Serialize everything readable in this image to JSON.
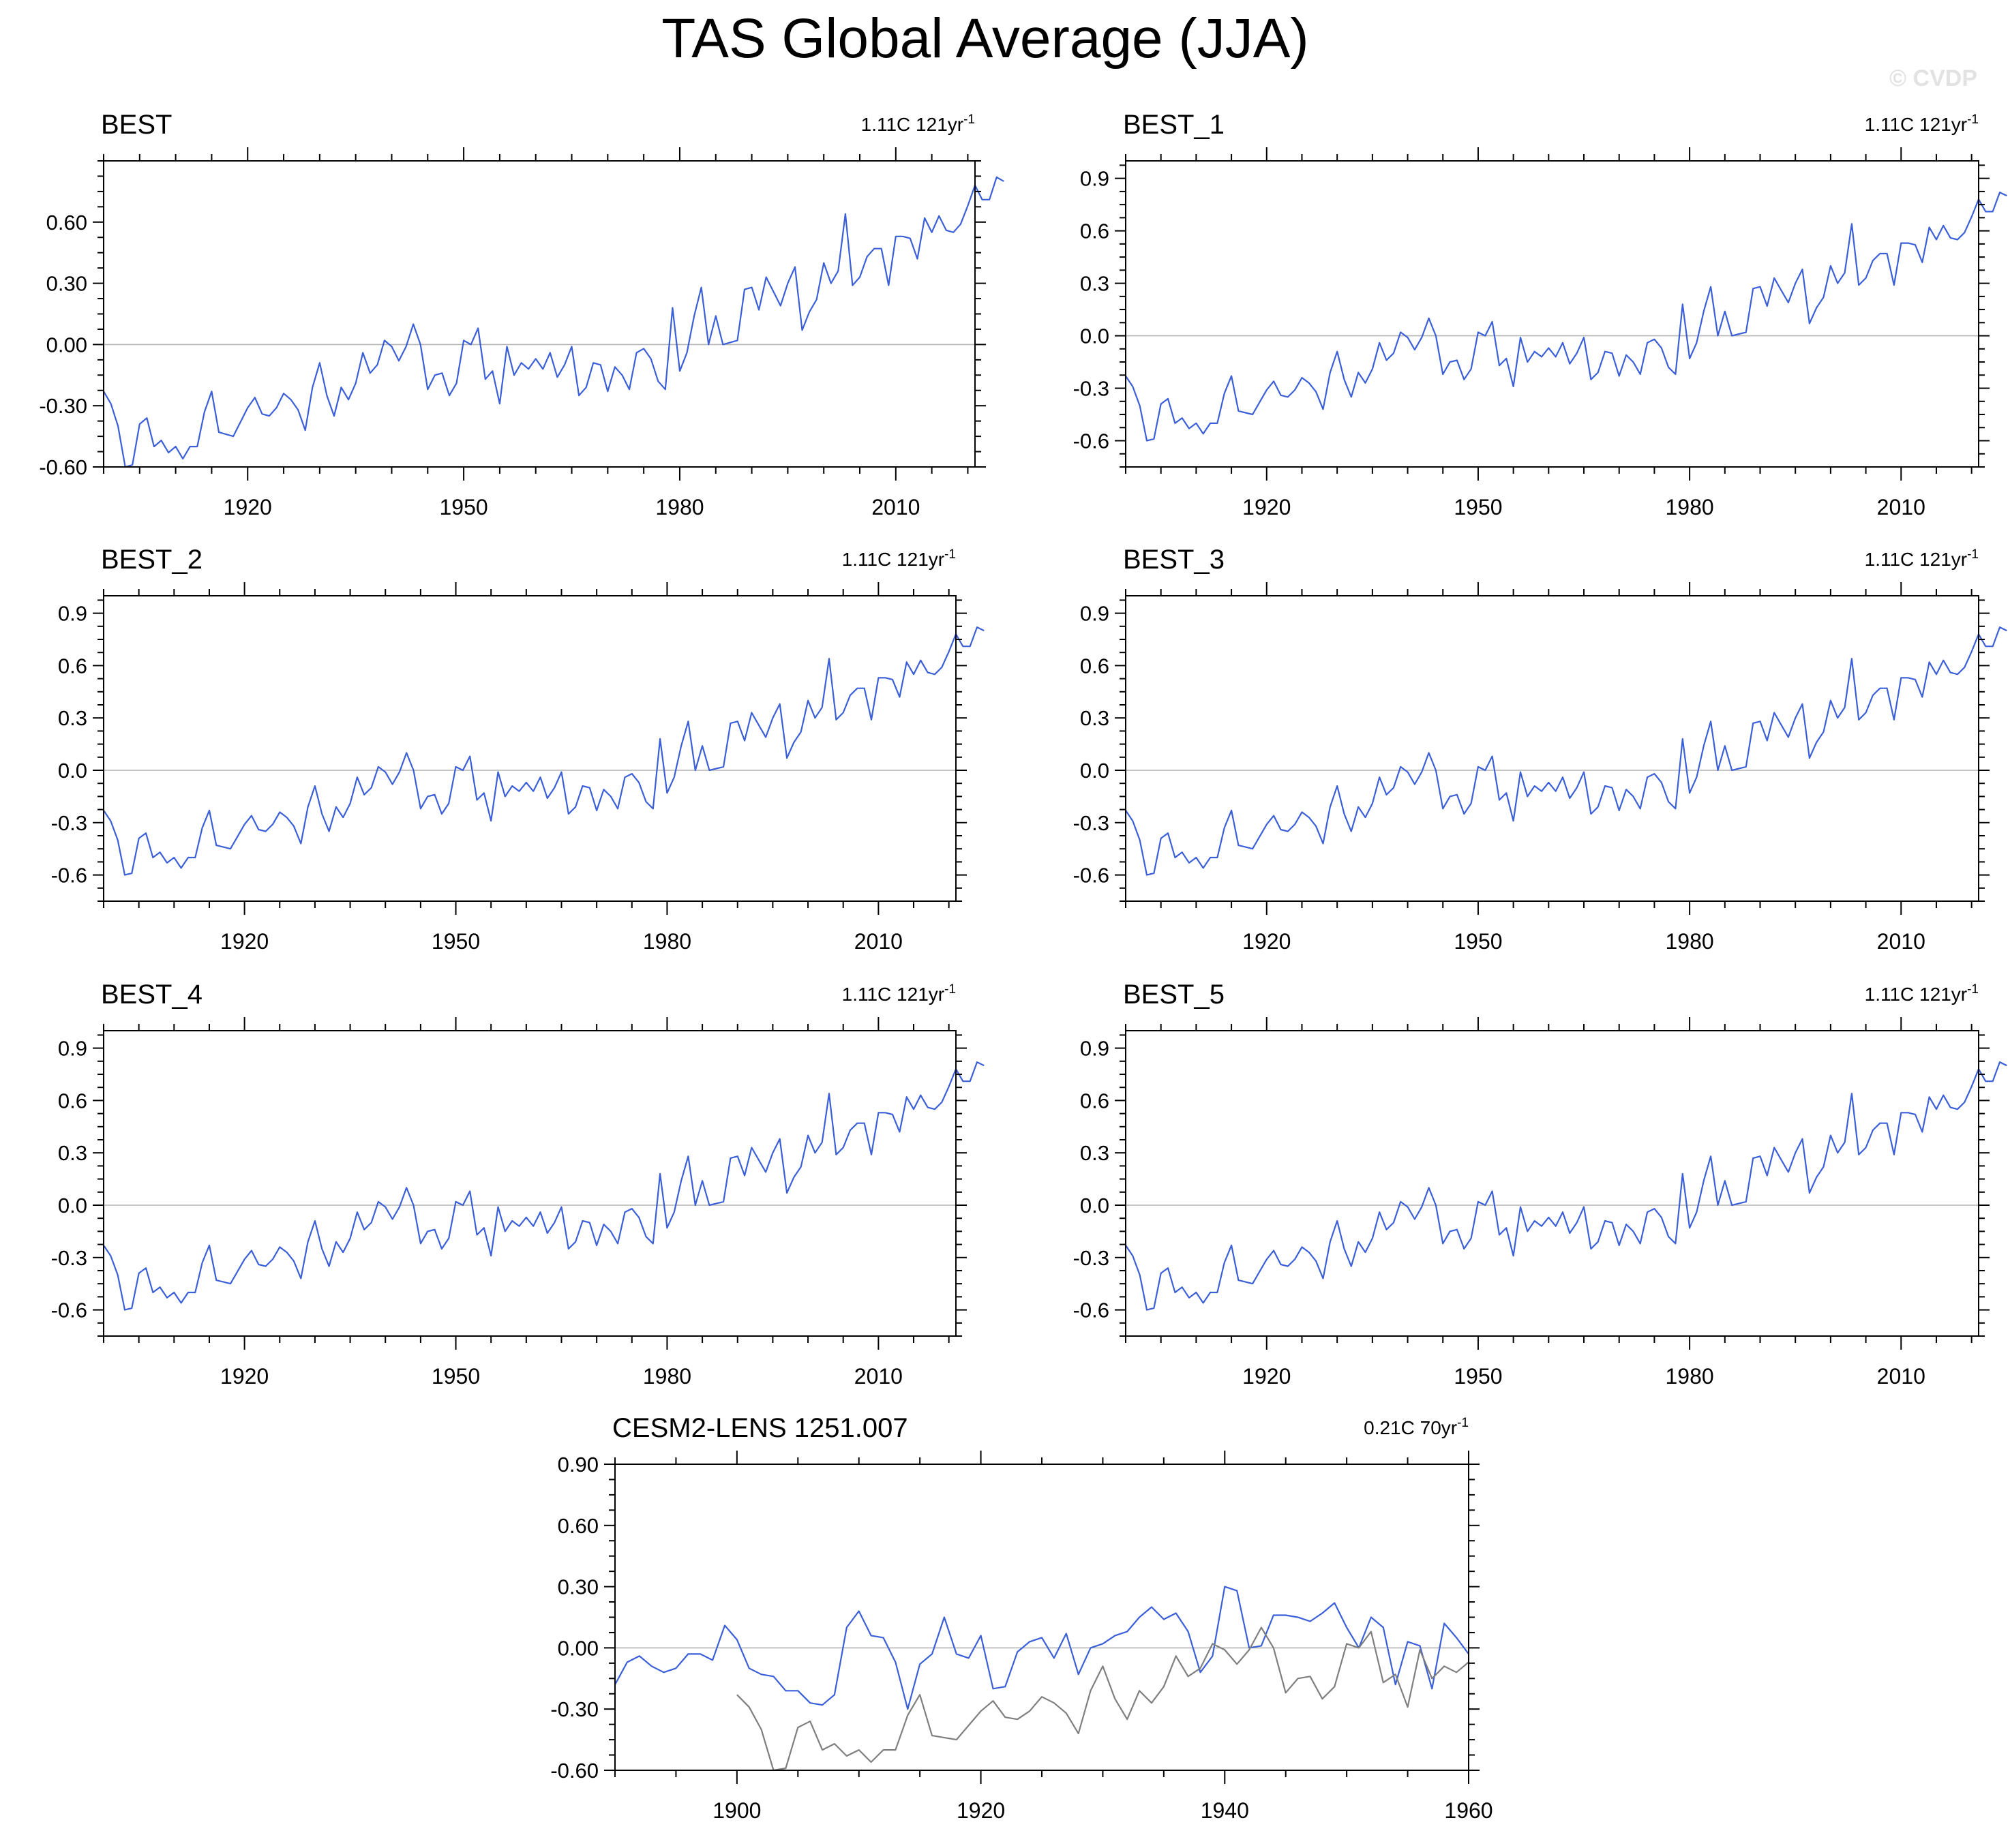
{
  "title": "TAS Global Average (JJA)",
  "watermark": "© CVDP",
  "colors": {
    "primary": "#3a5fd8",
    "reference": "#7f7f7f",
    "zero": "#b4b4b4",
    "axis": "#000000"
  },
  "chart_data": [
    {
      "type": "line",
      "title": "BEST",
      "trend": {
        "value": "1.11C",
        "period": "121yr",
        "exp": "-1"
      },
      "xlim": [
        1900,
        2021
      ],
      "ylim": [
        -0.6,
        0.9
      ],
      "xticks": [
        1920,
        1950,
        1980,
        2010
      ],
      "yticks": [
        -0.6,
        -0.3,
        0.0,
        0.3,
        0.6
      ],
      "ytick_labels": [
        "-0.60",
        "-0.30",
        "0.00",
        "0.30",
        "0.60"
      ],
      "series": [
        {
          "name": "BEST",
          "ref": "best"
        }
      ]
    },
    {
      "type": "line",
      "title": "BEST_1",
      "trend": {
        "value": "1.11C",
        "period": "121yr",
        "exp": "-1"
      },
      "xlim": [
        1900,
        2021
      ],
      "ylim": [
        -0.75,
        1.0
      ],
      "xticks": [
        1920,
        1950,
        1980,
        2010
      ],
      "yticks": [
        -0.6,
        -0.3,
        0.0,
        0.3,
        0.6,
        0.9
      ],
      "ytick_labels": [
        "-0.6",
        "-0.3",
        "0.0",
        "0.3",
        "0.6",
        "0.9"
      ],
      "series": [
        {
          "name": "BEST_1",
          "ref": "best"
        }
      ]
    },
    {
      "type": "line",
      "title": "BEST_2",
      "trend": {
        "value": "1.11C",
        "period": "121yr",
        "exp": "-1"
      },
      "xlim": [
        1900,
        2021
      ],
      "ylim": [
        -0.75,
        1.0
      ],
      "xticks": [
        1920,
        1950,
        1980,
        2010
      ],
      "yticks": [
        -0.6,
        -0.3,
        0.0,
        0.3,
        0.6,
        0.9
      ],
      "ytick_labels": [
        "-0.6",
        "-0.3",
        "0.0",
        "0.3",
        "0.6",
        "0.9"
      ],
      "series": [
        {
          "name": "BEST_2",
          "ref": "best"
        }
      ]
    },
    {
      "type": "line",
      "title": "BEST_3",
      "trend": {
        "value": "1.11C",
        "period": "121yr",
        "exp": "-1"
      },
      "xlim": [
        1900,
        2021
      ],
      "ylim": [
        -0.75,
        1.0
      ],
      "xticks": [
        1920,
        1950,
        1980,
        2010
      ],
      "yticks": [
        -0.6,
        -0.3,
        0.0,
        0.3,
        0.6,
        0.9
      ],
      "ytick_labels": [
        "-0.6",
        "-0.3",
        "0.0",
        "0.3",
        "0.6",
        "0.9"
      ],
      "series": [
        {
          "name": "BEST_3",
          "ref": "best"
        }
      ]
    },
    {
      "type": "line",
      "title": "BEST_4",
      "trend": {
        "value": "1.11C",
        "period": "121yr",
        "exp": "-1"
      },
      "xlim": [
        1900,
        2021
      ],
      "ylim": [
        -0.75,
        1.0
      ],
      "xticks": [
        1920,
        1950,
        1980,
        2010
      ],
      "yticks": [
        -0.6,
        -0.3,
        0.0,
        0.3,
        0.6,
        0.9
      ],
      "ytick_labels": [
        "-0.6",
        "-0.3",
        "0.0",
        "0.3",
        "0.6",
        "0.9"
      ],
      "series": [
        {
          "name": "BEST_4",
          "ref": "best"
        }
      ]
    },
    {
      "type": "line",
      "title": "BEST_5",
      "trend": {
        "value": "1.11C",
        "period": "121yr",
        "exp": "-1"
      },
      "xlim": [
        1900,
        2021
      ],
      "ylim": [
        -0.75,
        1.0
      ],
      "xticks": [
        1920,
        1950,
        1980,
        2010
      ],
      "yticks": [
        -0.6,
        -0.3,
        0.0,
        0.3,
        0.6,
        0.9
      ],
      "ytick_labels": [
        "-0.6",
        "-0.3",
        "0.0",
        "0.3",
        "0.6",
        "0.9"
      ],
      "series": [
        {
          "name": "BEST_5",
          "ref": "best"
        }
      ]
    },
    {
      "type": "line",
      "title": "CESM2-LENS 1251.007",
      "trend": {
        "value": "0.21C",
        "period": "70yr",
        "exp": "-1"
      },
      "xlim": [
        1890,
        1960
      ],
      "ylim": [
        -0.6,
        0.9
      ],
      "xticks": [
        1900,
        1920,
        1940,
        1960
      ],
      "yticks": [
        -0.6,
        -0.3,
        0.0,
        0.3,
        0.6,
        0.9
      ],
      "ytick_labels": [
        "-0.60",
        "-0.30",
        "0.00",
        "0.30",
        "0.60",
        "0.90"
      ],
      "series": [
        {
          "name": "CESM2-LENS 1251.007",
          "ref": "cesm",
          "x0": 1890
        },
        {
          "name": "BEST",
          "ref": "best",
          "range": [
            1900,
            1960
          ],
          "color": "reference"
        }
      ]
    }
  ],
  "series_data": {
    "best": {
      "x0": 1900,
      "values": [
        -0.23,
        -0.29,
        -0.4,
        -0.6,
        -0.59,
        -0.39,
        -0.36,
        -0.5,
        -0.47,
        -0.53,
        -0.5,
        -0.56,
        -0.5,
        -0.5,
        -0.33,
        -0.23,
        -0.43,
        -0.44,
        -0.45,
        -0.38,
        -0.31,
        -0.26,
        -0.34,
        -0.35,
        -0.31,
        -0.24,
        -0.27,
        -0.32,
        -0.42,
        -0.21,
        -0.09,
        -0.25,
        -0.35,
        -0.21,
        -0.27,
        -0.19,
        -0.04,
        -0.14,
        -0.1,
        0.02,
        -0.01,
        -0.08,
        -0.01,
        0.1,
        0.0,
        -0.22,
        -0.15,
        -0.14,
        -0.25,
        -0.19,
        0.02,
        0.0,
        0.08,
        -0.17,
        -0.13,
        -0.29,
        -0.01,
        -0.15,
        -0.09,
        -0.12,
        -0.07,
        -0.12,
        -0.04,
        -0.16,
        -0.1,
        -0.01,
        -0.25,
        -0.21,
        -0.09,
        -0.1,
        -0.23,
        -0.11,
        -0.15,
        -0.22,
        -0.04,
        -0.02,
        -0.07,
        -0.18,
        -0.22,
        0.18,
        -0.13,
        -0.04,
        0.14,
        0.28,
        0.0,
        0.14,
        0.0,
        0.01,
        0.02,
        0.27,
        0.28,
        0.17,
        0.33,
        0.26,
        0.19,
        0.3,
        0.38,
        0.07,
        0.16,
        0.22,
        0.4,
        0.3,
        0.36,
        0.64,
        0.29,
        0.33,
        0.43,
        0.47,
        0.47,
        0.29,
        0.53,
        0.53,
        0.52,
        0.42,
        0.62,
        0.55,
        0.63,
        0.56,
        0.55,
        0.59,
        0.68,
        0.78,
        0.71,
        0.71,
        0.82,
        0.8
      ]
    },
    "cesm": {
      "x0": 1890,
      "values": [
        -0.18,
        -0.07,
        -0.04,
        -0.09,
        -0.12,
        -0.1,
        -0.03,
        -0.03,
        -0.06,
        0.11,
        0.04,
        -0.1,
        -0.13,
        -0.14,
        -0.21,
        -0.21,
        -0.27,
        -0.28,
        -0.23,
        0.1,
        0.18,
        0.06,
        0.05,
        -0.07,
        -0.3,
        -0.08,
        -0.03,
        0.15,
        -0.03,
        -0.05,
        0.06,
        -0.2,
        -0.19,
        -0.02,
        0.03,
        0.05,
        -0.05,
        0.07,
        -0.13,
        0.0,
        0.02,
        0.06,
        0.08,
        0.15,
        0.2,
        0.14,
        0.17,
        0.08,
        -0.12,
        -0.04,
        0.3,
        0.28,
        0.0,
        0.01,
        0.16,
        0.16,
        0.15,
        0.13,
        0.17,
        0.22,
        0.1,
        0.0,
        0.15,
        0.1,
        -0.18,
        0.03,
        0.01,
        -0.2,
        0.12,
        0.05,
        -0.03
      ]
    }
  }
}
